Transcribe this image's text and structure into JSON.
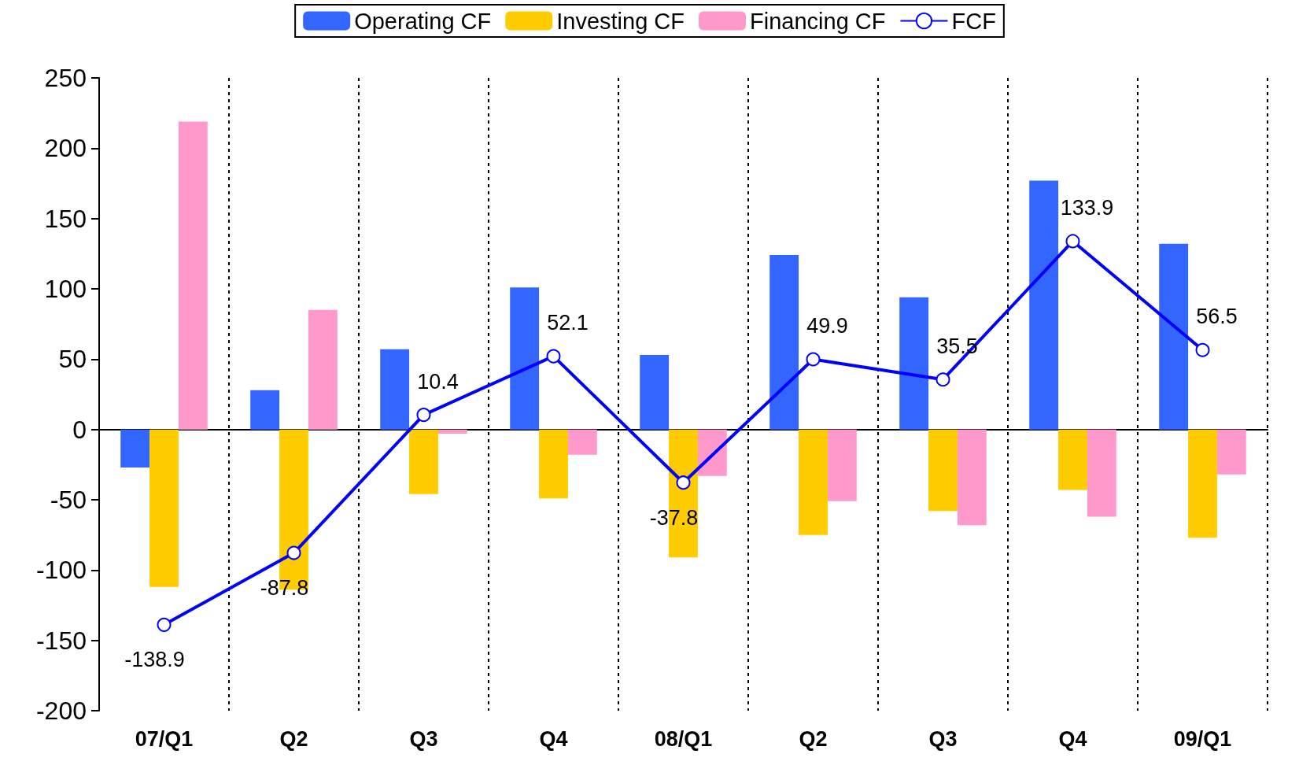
{
  "chart_data": {
    "type": "bar",
    "categories": [
      "07/Q1",
      "Q2",
      "Q3",
      "Q4",
      "08/Q1",
      "Q2",
      "Q3",
      "Q4",
      "09/Q1"
    ],
    "series": [
      {
        "name": "Operating CF",
        "color": "#3366ff",
        "values": [
          -27,
          28,
          57,
          101,
          53,
          124,
          94,
          177,
          132
        ]
      },
      {
        "name": "Investing CF",
        "color": "#ffcc00",
        "values": [
          -112,
          -114,
          -46,
          -49,
          -91,
          -75,
          -58,
          -43,
          -77
        ]
      },
      {
        "name": "Financing CF",
        "color": "#ff99cc",
        "values": [
          219,
          85,
          -3,
          -18,
          -33,
          -51,
          -68,
          -62,
          -32
        ]
      },
      {
        "name": "FCF",
        "type": "line",
        "color": "#0000ff",
        "marker": "circle",
        "values": [
          -138.9,
          -87.8,
          10.4,
          52.1,
          -37.8,
          49.9,
          35.5,
          133.9,
          56.5
        ],
        "value_labels": [
          "-138.9",
          "-87.8",
          "10.4",
          "52.1",
          "-37.8",
          "49.9",
          "35.5",
          "133.9",
          "56.5"
        ]
      }
    ],
    "ylim": [
      -200,
      250
    ],
    "yticks": [
      -200,
      -150,
      -100,
      -50,
      0,
      50,
      100,
      150,
      200,
      250
    ],
    "grid": "x",
    "legend": "top"
  }
}
